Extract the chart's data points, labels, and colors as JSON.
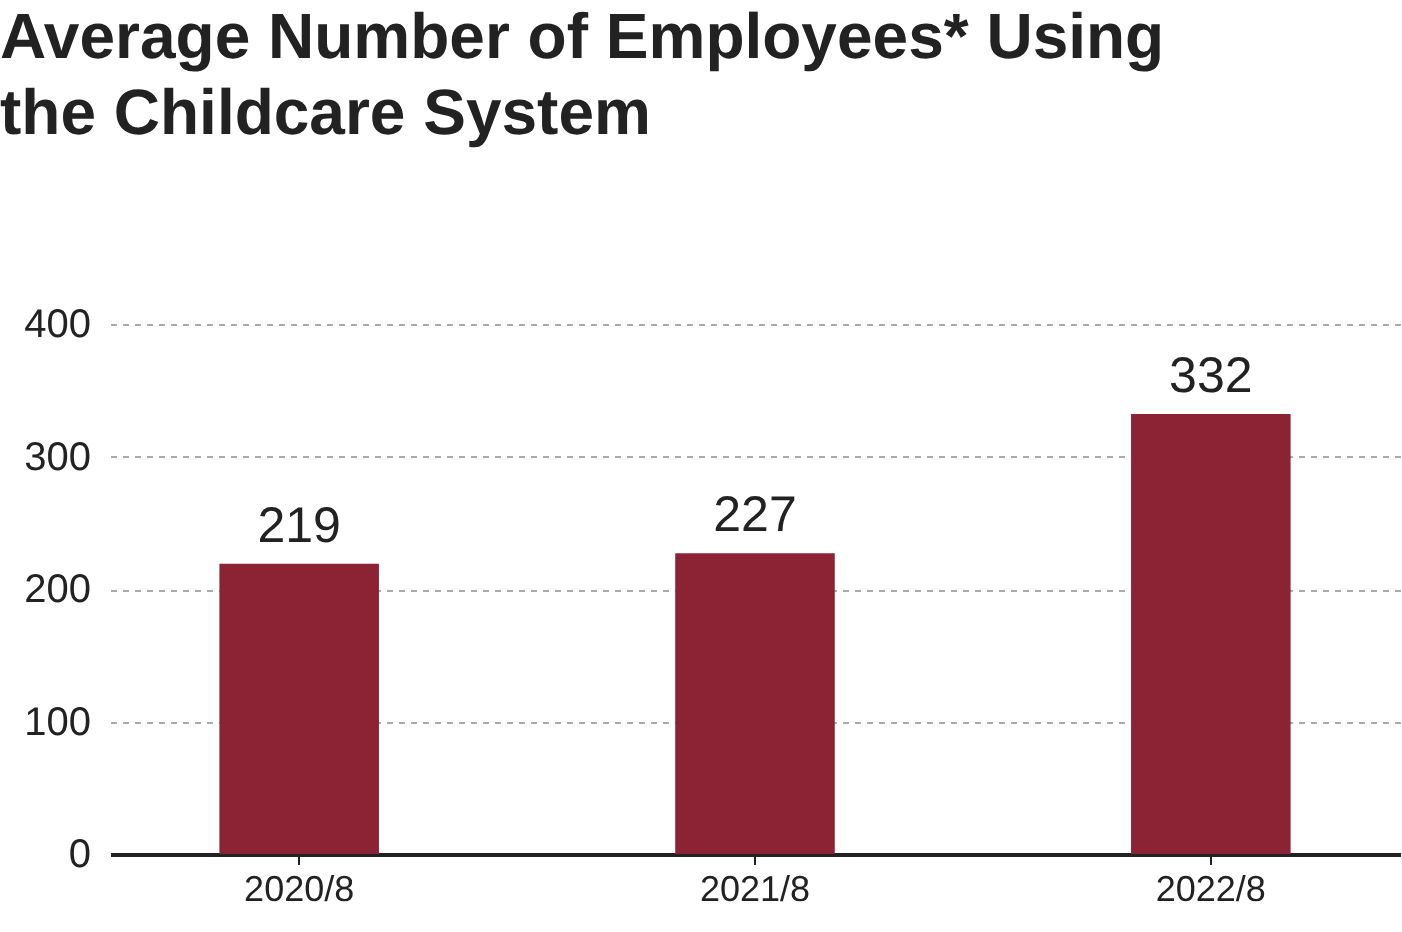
{
  "chart_data": {
    "type": "bar",
    "title": "Average Number of Employees* Using the Childcare System",
    "categories": [
      "2020/8",
      "2021/8",
      "2022/8"
    ],
    "values": [
      219,
      227,
      332
    ],
    "color": "#8b2335",
    "ylim": [
      0,
      400
    ],
    "yticks": [
      0,
      100,
      200,
      300,
      400
    ],
    "grid": "y",
    "data_labels": true
  }
}
